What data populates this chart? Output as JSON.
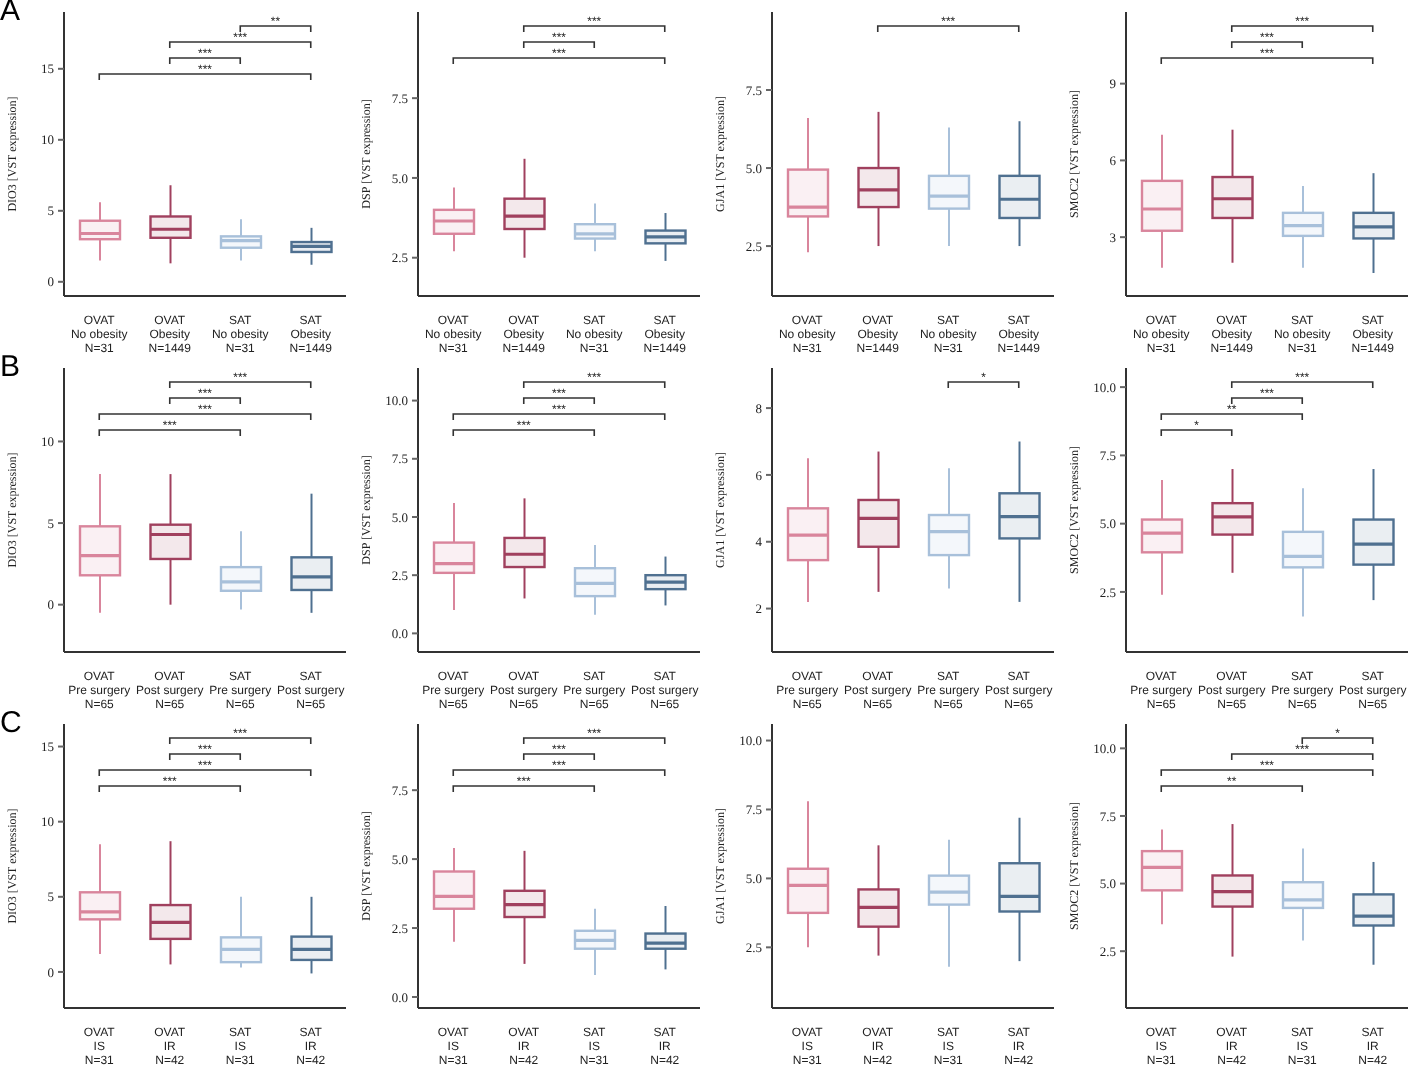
{
  "chart_data": [
    {
      "type": "box",
      "title": "A",
      "ylabel": "DIO3 [VST expression]",
      "categories": [
        "OVAT\nNo obesity\nN=31",
        "OVAT\nObesity\nN=1449",
        "SAT\nNo obesity\nN=31",
        "SAT\nObesity\nN=1449"
      ],
      "colors": [
        "#d9859c",
        "#a0405e",
        "#a8c0da",
        "#4f7090"
      ],
      "ylim": [
        -1,
        19
      ],
      "yticks": [
        0,
        5,
        10,
        15
      ],
      "annotations": [
        "**",
        "***",
        "***",
        "***"
      ],
      "legend": false,
      "grid": false,
      "boxes": [
        {
          "low": 1.5,
          "q1": 3.0,
          "median": 3.4,
          "q3": 4.3,
          "high": 5.6
        },
        {
          "low": 1.3,
          "q1": 3.1,
          "median": 3.7,
          "q3": 4.6,
          "high": 6.8
        },
        {
          "low": 1.5,
          "q1": 2.4,
          "median": 2.9,
          "q3": 3.2,
          "high": 4.4
        },
        {
          "low": 1.2,
          "q1": 2.1,
          "median": 2.5,
          "q3": 2.8,
          "high": 3.8
        }
      ]
    },
    {
      "type": "box",
      "ylabel": "DSP [VST expression]",
      "categories": [
        "OVAT\nNo obesity\nN=31",
        "OVAT\nObesity\nN=1449",
        "SAT\nNo obesity\nN=31",
        "SAT\nObesity\nN=1449"
      ],
      "colors": [
        "#d9859c",
        "#a0405e",
        "#a8c0da",
        "#4f7090"
      ],
      "ylim": [
        1.3,
        10.2
      ],
      "yticks": [
        2.5,
        {
          "value": 5,
          "label": "5.0"
        },
        7.5
      ],
      "annotations": [
        "***",
        "***",
        "***"
      ],
      "legend": false,
      "grid": false,
      "boxes": [
        {
          "low": 2.7,
          "q1": 3.25,
          "median": 3.65,
          "q3": 4.0,
          "high": 4.7
        },
        {
          "low": 2.5,
          "q1": 3.4,
          "median": 3.8,
          "q3": 4.35,
          "high": 5.6
        },
        {
          "low": 2.7,
          "q1": 3.1,
          "median": 3.25,
          "q3": 3.55,
          "high": 4.2
        },
        {
          "low": 2.4,
          "q1": 2.95,
          "median": 3.15,
          "q3": 3.35,
          "high": 3.9
        }
      ]
    },
    {
      "type": "box",
      "ylabel": "GJA1 [VST expression]",
      "categories": [
        "OVAT\nNo obesity\nN=31",
        "OVAT\nObesity\nN=1449",
        "SAT\nNo obesity\nN=31",
        "SAT\nObesity\nN=1449"
      ],
      "colors": [
        "#d9859c",
        "#a0405e",
        "#a8c0da",
        "#4f7090"
      ],
      "ylim": [
        0.9,
        10
      ],
      "yticks": [
        2.5,
        {
          "value": 5,
          "label": "5.0"
        },
        7.5
      ],
      "annotations": [
        "***"
      ],
      "legend": false,
      "grid": false,
      "boxes": [
        {
          "low": 2.3,
          "q1": 3.45,
          "median": 3.75,
          "q3": 4.95,
          "high": 6.6
        },
        {
          "low": 2.5,
          "q1": 3.75,
          "median": 4.3,
          "q3": 5.0,
          "high": 6.8
        },
        {
          "low": 2.5,
          "q1": 3.7,
          "median": 4.1,
          "q3": 4.75,
          "high": 6.3
        },
        {
          "low": 2.5,
          "q1": 3.4,
          "median": 4.0,
          "q3": 4.75,
          "high": 6.5
        }
      ]
    },
    {
      "type": "box",
      "ylabel": "SMOC2 [VST expression]",
      "categories": [
        "OVAT\nNo obesity\nN=31",
        "OVAT\nObesity\nN=1449",
        "SAT\nNo obesity\nN=31",
        "SAT\nObesity\nN=1449"
      ],
      "colors": [
        "#d9859c",
        "#a0405e",
        "#a8c0da",
        "#4f7090"
      ],
      "ylim": [
        0.7,
        11.8
      ],
      "yticks": [
        3,
        6,
        9
      ],
      "annotations": [
        "***",
        "***",
        "***"
      ],
      "legend": false,
      "grid": false,
      "boxes": [
        {
          "low": 1.8,
          "q1": 3.25,
          "median": 4.1,
          "q3": 5.2,
          "high": 7.0
        },
        {
          "low": 2.0,
          "q1": 3.75,
          "median": 4.5,
          "q3": 5.35,
          "high": 7.2
        },
        {
          "low": 1.8,
          "q1": 3.05,
          "median": 3.45,
          "q3": 3.95,
          "high": 5.0
        },
        {
          "low": 1.6,
          "q1": 2.95,
          "median": 3.4,
          "q3": 3.95,
          "high": 5.5
        }
      ]
    },
    {
      "type": "box",
      "title": "B",
      "ylabel": "DIO3 [VST expression]",
      "categories": [
        "OVAT\nPre surgery\nN=65",
        "OVAT\nPost surgery\nN=65",
        "SAT\nPre surgery\nN=65",
        "SAT\nPost surgery\nN=65"
      ],
      "colors": [
        "#d9859c",
        "#a0405e",
        "#a8c0da",
        "#4f7090"
      ],
      "ylim": [
        -2.9,
        14.5
      ],
      "yticks": [
        0,
        5,
        10
      ],
      "annotations": [
        "***",
        "***",
        "***",
        "***"
      ],
      "legend": false,
      "grid": false,
      "boxes": [
        {
          "low": -0.5,
          "q1": 1.8,
          "median": 3.0,
          "q3": 4.8,
          "high": 8.0
        },
        {
          "low": 0,
          "q1": 2.8,
          "median": 4.3,
          "q3": 4.9,
          "high": 8.0
        },
        {
          "low": -0.3,
          "q1": 0.85,
          "median": 1.4,
          "q3": 2.3,
          "high": 4.5
        },
        {
          "low": -0.5,
          "q1": 0.9,
          "median": 1.7,
          "q3": 2.9,
          "high": 6.8
        }
      ]
    },
    {
      "type": "box",
      "ylabel": "DSP [VST expression]",
      "categories": [
        "OVAT\nPre surgery\nN=65",
        "OVAT\nPost surgery\nN=65",
        "SAT\nPre surgery\nN=65",
        "SAT\nPost surgery\nN=65"
      ],
      "colors": [
        "#d9859c",
        "#a0405e",
        "#a8c0da",
        "#4f7090"
      ],
      "ylim": [
        -0.8,
        11.4
      ],
      "yticks": [
        {
          "value": 0,
          "label": "0.0"
        },
        2.5,
        {
          "value": 5,
          "label": "5.0"
        },
        7.5,
        {
          "value": 10,
          "label": "10.0"
        }
      ],
      "annotations": [
        "***",
        "***",
        "***",
        "***"
      ],
      "legend": false,
      "grid": false,
      "boxes": [
        {
          "low": 1.0,
          "q1": 2.6,
          "median": 3.0,
          "q3": 3.9,
          "high": 5.6
        },
        {
          "low": 1.5,
          "q1": 2.85,
          "median": 3.4,
          "q3": 4.1,
          "high": 5.8
        },
        {
          "low": 0.8,
          "q1": 1.6,
          "median": 2.15,
          "q3": 2.8,
          "high": 3.8
        },
        {
          "low": 1.2,
          "q1": 1.9,
          "median": 2.2,
          "q3": 2.5,
          "high": 3.3
        }
      ]
    },
    {
      "type": "box",
      "ylabel": "GJA1 [VST expression]",
      "categories": [
        "OVAT\nPre surgery\nN=65",
        "OVAT\nPost surgery\nN=65",
        "SAT\nPre surgery\nN=65",
        "SAT\nPost surgery\nN=65"
      ],
      "colors": [
        "#d9859c",
        "#a0405e",
        "#a8c0da",
        "#4f7090"
      ],
      "ylim": [
        0.7,
        9.2
      ],
      "yticks": [
        2,
        4,
        6,
        8
      ],
      "annotations": [
        "*"
      ],
      "legend": false,
      "grid": false,
      "boxes": [
        {
          "low": 2.2,
          "q1": 3.45,
          "median": 4.2,
          "q3": 5.0,
          "high": 6.5
        },
        {
          "low": 2.5,
          "q1": 3.85,
          "median": 4.7,
          "q3": 5.25,
          "high": 6.7
        },
        {
          "low": 2.6,
          "q1": 3.6,
          "median": 4.3,
          "q3": 4.8,
          "high": 6.2
        },
        {
          "low": 2.2,
          "q1": 4.1,
          "median": 4.75,
          "q3": 5.45,
          "high": 7.0
        }
      ]
    },
    {
      "type": "box",
      "ylabel": "SMOC2 [VST expression]",
      "categories": [
        "OVAT\nPre surgery\nN=65",
        "OVAT\nPost surgery\nN=65",
        "SAT\nPre surgery\nN=65",
        "SAT\nPost surgery\nN=65"
      ],
      "colors": [
        "#d9859c",
        "#a0405e",
        "#a8c0da",
        "#4f7090"
      ],
      "ylim": [
        0.3,
        10.7
      ],
      "yticks": [
        2.5,
        {
          "value": 5,
          "label": "5.0"
        },
        7.5,
        {
          "value": 10,
          "label": "10.0"
        }
      ],
      "annotations": [
        "***",
        "***",
        "**",
        "*"
      ],
      "legend": false,
      "grid": false,
      "boxes": [
        {
          "low": 2.4,
          "q1": 3.95,
          "median": 4.65,
          "q3": 5.15,
          "high": 6.6
        },
        {
          "low": 3.2,
          "q1": 4.6,
          "median": 5.25,
          "q3": 5.75,
          "high": 7.0
        },
        {
          "low": 1.6,
          "q1": 3.4,
          "median": 3.8,
          "q3": 4.7,
          "high": 6.3
        },
        {
          "low": 2.2,
          "q1": 3.5,
          "median": 4.25,
          "q3": 5.15,
          "high": 7.0
        }
      ]
    },
    {
      "type": "box",
      "title": "C",
      "ylabel": "DIO3 [VST expression]",
      "categories": [
        "OVAT\nIS\nN=31",
        "OVAT\nIR\nN=42",
        "SAT\nIS\nN=31",
        "SAT\nIR\nN=42"
      ],
      "colors": [
        "#d9859c",
        "#a0405e",
        "#a8c0da",
        "#4f7090"
      ],
      "ylim": [
        -2.4,
        16.5
      ],
      "yticks": [
        0,
        5,
        10,
        15
      ],
      "annotations": [
        "***",
        "***",
        "***",
        "***"
      ],
      "legend": false,
      "grid": false,
      "boxes": [
        {
          "low": 1.2,
          "q1": 3.5,
          "median": 4.0,
          "q3": 5.3,
          "high": 8.5
        },
        {
          "low": 0.5,
          "q1": 2.2,
          "median": 3.3,
          "q3": 4.45,
          "high": 8.7
        },
        {
          "low": 0.3,
          "q1": 0.65,
          "median": 1.5,
          "q3": 2.3,
          "high": 5.0
        },
        {
          "low": -0.1,
          "q1": 0.8,
          "median": 1.5,
          "q3": 2.35,
          "high": 5.0
        }
      ]
    },
    {
      "type": "box",
      "ylabel": "DSP [VST expression]",
      "categories": [
        "OVAT\nIS\nN=31",
        "OVAT\nIR\nN=42",
        "SAT\nIS\nN=31",
        "SAT\nIR\nN=42"
      ],
      "colors": [
        "#d9859c",
        "#a0405e",
        "#a8c0da",
        "#4f7090"
      ],
      "ylim": [
        -0.4,
        9.9
      ],
      "yticks": [
        {
          "value": 0,
          "label": "0.0"
        },
        2.5,
        {
          "value": 5,
          "label": "5.0"
        },
        7.5
      ],
      "annotations": [
        "***",
        "***",
        "***",
        "***"
      ],
      "legend": false,
      "grid": false,
      "boxes": [
        {
          "low": 2.0,
          "q1": 3.2,
          "median": 3.65,
          "q3": 4.55,
          "high": 5.4
        },
        {
          "low": 1.2,
          "q1": 2.9,
          "median": 3.35,
          "q3": 3.85,
          "high": 5.3
        },
        {
          "low": 0.8,
          "q1": 1.75,
          "median": 2.05,
          "q3": 2.4,
          "high": 3.2
        },
        {
          "low": 1.0,
          "q1": 1.75,
          "median": 1.95,
          "q3": 2.3,
          "high": 3.3
        }
      ]
    },
    {
      "type": "box",
      "ylabel": "GJA1 [VST expression]",
      "categories": [
        "OVAT\nIS\nN=31",
        "OVAT\nIR\nN=42",
        "SAT\nIS\nN=31",
        "SAT\nIR\nN=42"
      ],
      "colors": [
        "#d9859c",
        "#a0405e",
        "#a8c0da",
        "#4f7090"
      ],
      "ylim": [
        0.3,
        10.6
      ],
      "yticks": [
        2.5,
        {
          "value": 5,
          "label": "5.0"
        },
        7.5,
        {
          "value": 10,
          "label": "10.0"
        }
      ],
      "legend": false,
      "grid": false,
      "boxes": [
        {
          "low": 2.5,
          "q1": 3.75,
          "median": 4.75,
          "q3": 5.35,
          "high": 7.8
        },
        {
          "low": 2.2,
          "q1": 3.25,
          "median": 3.95,
          "q3": 4.6,
          "high": 6.2
        },
        {
          "low": 1.8,
          "q1": 4.05,
          "median": 4.5,
          "q3": 5.1,
          "high": 6.4
        },
        {
          "low": 2.0,
          "q1": 3.8,
          "median": 4.35,
          "q3": 5.55,
          "high": 7.2
        }
      ]
    },
    {
      "type": "box",
      "ylabel": "SMOC2 [VST expression]",
      "categories": [
        "OVAT\nIS\nN=31",
        "OVAT\nIR\nN=42",
        "SAT\nIS\nN=31",
        "SAT\nIR\nN=42"
      ],
      "colors": [
        "#d9859c",
        "#a0405e",
        "#a8c0da",
        "#4f7090"
      ],
      "ylim": [
        0.4,
        10.9
      ],
      "yticks": [
        2.5,
        {
          "value": 5,
          "label": "5.0"
        },
        7.5,
        {
          "value": 10,
          "label": "10.0"
        }
      ],
      "annotations": [
        "*",
        "***",
        "***",
        "**"
      ],
      "legend": false,
      "grid": false,
      "boxes": [
        {
          "low": 3.5,
          "q1": 4.75,
          "median": 5.6,
          "q3": 6.2,
          "high": 7.0
        },
        {
          "low": 2.3,
          "q1": 4.15,
          "median": 4.7,
          "q3": 5.3,
          "high": 7.2
        },
        {
          "low": 2.9,
          "q1": 4.1,
          "median": 4.4,
          "q3": 5.05,
          "high": 6.3
        },
        {
          "low": 2.0,
          "q1": 3.45,
          "median": 3.8,
          "q3": 4.6,
          "high": 5.8
        }
      ]
    }
  ]
}
